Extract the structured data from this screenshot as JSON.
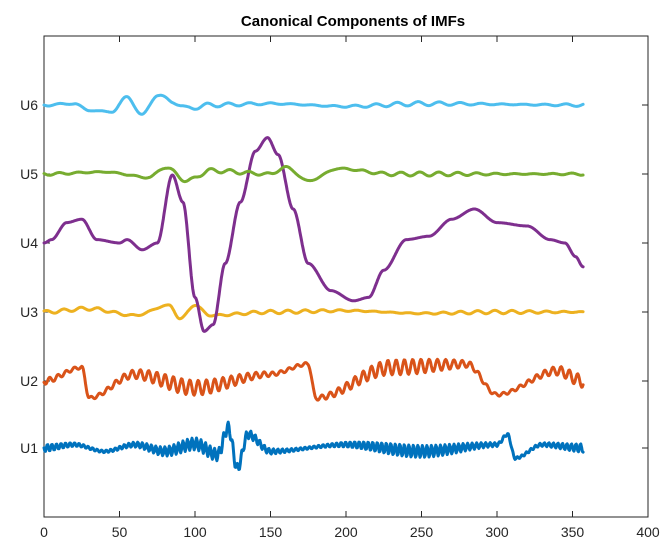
{
  "chart_data": {
    "type": "line",
    "title": "Canonical Components of IMFs",
    "xlabel": "",
    "ylabel": "",
    "xlim": [
      0,
      400
    ],
    "x_ticks": [
      0,
      50,
      100,
      150,
      200,
      250,
      300,
      350,
      400
    ],
    "y_ticks": [
      "U1",
      "U2",
      "U3",
      "U4",
      "U5",
      "U6"
    ],
    "grid": false,
    "x_range": [
      0,
      357
    ],
    "series": [
      {
        "label": "U1",
        "color": "#0072BD",
        "approx_amplitude": 0.18,
        "notes": "high-frequency oscillation, burst near x=120-130",
        "shape_points": [
          [
            0,
            0
          ],
          [
            20,
            0.05
          ],
          [
            40,
            -0.05
          ],
          [
            60,
            0.05
          ],
          [
            80,
            -0.05
          ],
          [
            100,
            0.06
          ],
          [
            115,
            -0.1
          ],
          [
            122,
            0.3
          ],
          [
            128,
            -0.3
          ],
          [
            135,
            0.2
          ],
          [
            150,
            -0.05
          ],
          [
            200,
            0.05
          ],
          [
            250,
            -0.05
          ],
          [
            300,
            0.05
          ],
          [
            307,
            0.2
          ],
          [
            312,
            -0.15
          ],
          [
            330,
            0.05
          ],
          [
            357,
            0
          ]
        ]
      },
      {
        "label": "U2",
        "color": "#D95319",
        "approx_amplitude": 0.3,
        "notes": "medium-frequency oscillation across entire range",
        "shape_points": [
          [
            0,
            0
          ],
          [
            25,
            0.2
          ],
          [
            30,
            -0.25
          ],
          [
            60,
            0.1
          ],
          [
            100,
            -0.1
          ],
          [
            150,
            0.1
          ],
          [
            175,
            0.25
          ],
          [
            180,
            -0.25
          ],
          [
            230,
            0.2
          ],
          [
            280,
            0.25
          ],
          [
            300,
            -0.2
          ],
          [
            340,
            0.15
          ],
          [
            357,
            0
          ]
        ]
      },
      {
        "label": "U3",
        "color": "#EDB120",
        "approx_amplitude": 0.12,
        "notes": "small oscillations, larger near x=70-110",
        "shape_points": [
          [
            0,
            0
          ],
          [
            30,
            0.05
          ],
          [
            60,
            -0.05
          ],
          [
            83,
            0.1
          ],
          [
            90,
            -0.1
          ],
          [
            100,
            0.1
          ],
          [
            110,
            -0.05
          ],
          [
            150,
            0
          ],
          [
            200,
            0.02
          ],
          [
            250,
            -0.02
          ],
          [
            300,
            0
          ],
          [
            357,
            0
          ]
        ]
      },
      {
        "label": "U4",
        "color": "#7E2F8E",
        "approx_amplitude": 2.4,
        "notes": "large slow oscillation",
        "shape_points": [
          [
            0,
            0.0
          ],
          [
            5,
            0.05
          ],
          [
            15,
            0.3
          ],
          [
            25,
            0.35
          ],
          [
            35,
            0.05
          ],
          [
            50,
            0.0
          ],
          [
            55,
            0.05
          ],
          [
            65,
            -0.1
          ],
          [
            75,
            0.0
          ],
          [
            85,
            1.0
          ],
          [
            92,
            0.6
          ],
          [
            100,
            -0.8
          ],
          [
            106,
            -1.3
          ],
          [
            112,
            -1.2
          ],
          [
            120,
            -0.3
          ],
          [
            130,
            0.6
          ],
          [
            140,
            1.35
          ],
          [
            148,
            1.55
          ],
          [
            155,
            1.3
          ],
          [
            165,
            0.5
          ],
          [
            175,
            -0.3
          ],
          [
            190,
            -0.7
          ],
          [
            205,
            -0.85
          ],
          [
            215,
            -0.8
          ],
          [
            225,
            -0.4
          ],
          [
            240,
            0.05
          ],
          [
            255,
            0.1
          ],
          [
            270,
            0.35
          ],
          [
            285,
            0.5
          ],
          [
            300,
            0.3
          ],
          [
            320,
            0.25
          ],
          [
            335,
            0.05
          ],
          [
            345,
            0.0
          ],
          [
            352,
            -0.2
          ],
          [
            357,
            -0.35
          ]
        ]
      },
      {
        "label": "U5",
        "color": "#77AC30",
        "approx_amplitude": 0.15,
        "notes": "oscillation with bursts near x=75-110 and 160-200",
        "shape_points": [
          [
            0,
            0
          ],
          [
            40,
            0.03
          ],
          [
            70,
            -0.05
          ],
          [
            80,
            0.1
          ],
          [
            95,
            -0.1
          ],
          [
            110,
            0.05
          ],
          [
            150,
            0
          ],
          [
            160,
            0.1
          ],
          [
            175,
            -0.1
          ],
          [
            195,
            0.08
          ],
          [
            230,
            0
          ],
          [
            357,
            0
          ]
        ]
      },
      {
        "label": "U6",
        "color": "#4DBEEE",
        "approx_amplitude": 0.2,
        "notes": "large wiggles between x=20-90, then flatter",
        "shape_points": [
          [
            0,
            0
          ],
          [
            20,
            0.02
          ],
          [
            30,
            -0.08
          ],
          [
            45,
            -0.1
          ],
          [
            55,
            0.12
          ],
          [
            65,
            -0.15
          ],
          [
            75,
            0.15
          ],
          [
            85,
            0.05
          ],
          [
            95,
            -0.05
          ],
          [
            110,
            0
          ],
          [
            150,
            0.02
          ],
          [
            200,
            -0.02
          ],
          [
            250,
            0.02
          ],
          [
            357,
            0
          ]
        ]
      }
    ]
  }
}
